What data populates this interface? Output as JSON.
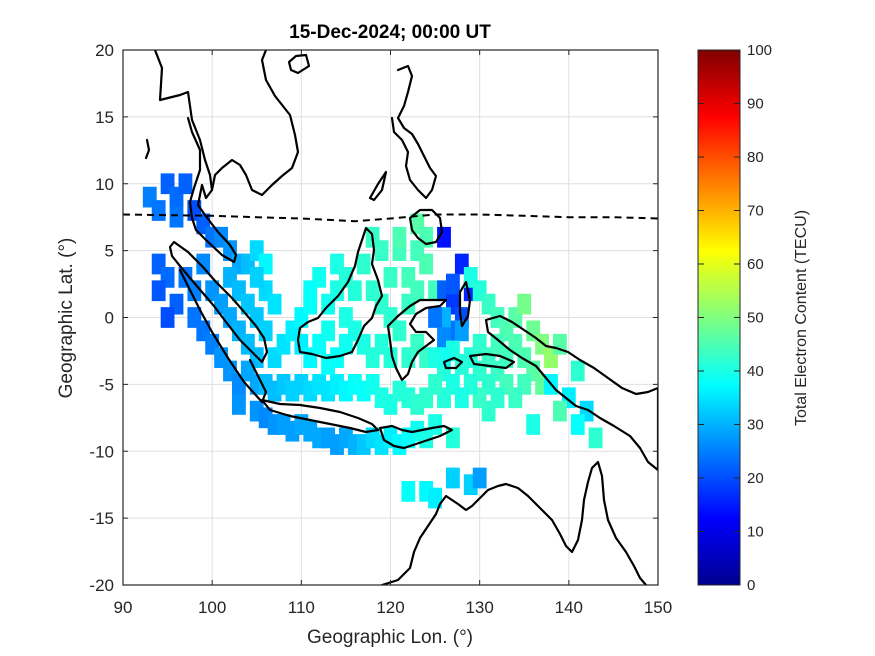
{
  "chart_data": {
    "type": "heatmap",
    "title": "15-Dec-2024; 00:00 UT",
    "xlabel": "Geographic Lon. (°)",
    "ylabel": "Geographic Lat. (°)",
    "xlim": [
      90,
      150
    ],
    "ylim": [
      -20,
      20
    ],
    "xticks": [
      "90",
      "100",
      "110",
      "120",
      "130",
      "140",
      "150"
    ],
    "yticks": [
      "20",
      "15",
      "10",
      "5",
      "0",
      "-5",
      "-10",
      "-15",
      "-20"
    ],
    "grid": true,
    "colorbar": {
      "label": "Total Electron Content (TECU)",
      "range": [
        0,
        100
      ],
      "ticks": [
        "100",
        "90",
        "80",
        "70",
        "60",
        "50",
        "40",
        "30",
        "20",
        "10",
        "0"
      ],
      "colormap": "jet"
    },
    "magnetic_equator": [
      [
        90,
        7.7
      ],
      [
        100,
        7.6
      ],
      [
        105,
        7.5
      ],
      [
        110,
        7.4
      ],
      [
        116,
        7.2
      ],
      [
        120,
        7.4
      ],
      [
        125,
        7.7
      ],
      [
        130,
        7.7
      ],
      [
        135,
        7.6
      ],
      [
        140,
        7.5
      ],
      [
        145,
        7.5
      ],
      [
        150,
        7.4
      ]
    ],
    "tec_cells": [
      [
        93,
        9,
        25
      ],
      [
        94,
        8,
        24
      ],
      [
        95,
        10,
        22
      ],
      [
        96,
        9,
        23
      ],
      [
        96,
        7.5,
        24
      ],
      [
        97,
        10,
        22
      ],
      [
        94,
        4,
        22
      ],
      [
        95,
        3,
        23
      ],
      [
        96,
        1,
        22
      ],
      [
        94,
        2,
        21
      ],
      [
        95,
        0,
        20
      ],
      [
        98,
        8,
        20
      ],
      [
        99,
        7,
        22
      ],
      [
        100,
        6,
        24
      ],
      [
        101,
        6,
        26
      ],
      [
        102,
        5,
        27
      ],
      [
        103,
        4,
        29
      ],
      [
        104,
        4,
        31
      ],
      [
        105,
        5,
        34
      ],
      [
        106,
        4,
        37
      ],
      [
        97,
        3,
        24
      ],
      [
        98,
        2,
        25
      ],
      [
        98,
        0,
        24
      ],
      [
        99,
        -1,
        24
      ],
      [
        100,
        -2,
        25
      ],
      [
        101,
        -3,
        27
      ],
      [
        102,
        -4,
        27
      ],
      [
        103,
        -5,
        26
      ],
      [
        103,
        -6.5,
        27
      ],
      [
        99,
        4,
        26
      ],
      [
        100,
        2,
        27
      ],
      [
        101,
        1,
        28
      ],
      [
        102,
        0,
        29
      ],
      [
        103,
        -1,
        30
      ],
      [
        104,
        -2,
        31
      ],
      [
        105,
        -3,
        31
      ],
      [
        104,
        -4,
        29
      ],
      [
        105,
        -5,
        29
      ],
      [
        102,
        3,
        30
      ],
      [
        103,
        2,
        31
      ],
      [
        104,
        1,
        32
      ],
      [
        105,
        0,
        32
      ],
      [
        106,
        -1,
        33
      ],
      [
        106,
        2,
        34
      ],
      [
        107,
        1,
        35
      ],
      [
        105,
        3,
        33
      ],
      [
        105,
        -7,
        27
      ],
      [
        106,
        -7.5,
        26
      ],
      [
        107,
        -8,
        27
      ],
      [
        108,
        -8,
        28
      ],
      [
        109,
        -8.5,
        28
      ],
      [
        110,
        -8,
        29
      ],
      [
        111,
        -8.5,
        29
      ],
      [
        112,
        -9,
        29
      ],
      [
        113,
        -9,
        28
      ],
      [
        114,
        -9.5,
        28
      ],
      [
        115,
        -9,
        29
      ],
      [
        116,
        -9.5,
        30
      ],
      [
        117,
        -9.5,
        32
      ],
      [
        118,
        -9,
        34
      ],
      [
        119,
        -9.5,
        35
      ],
      [
        120,
        -9,
        36
      ],
      [
        121,
        -9.5,
        37
      ],
      [
        122,
        -9,
        38
      ],
      [
        123,
        -8.5,
        39
      ],
      [
        124,
        -9,
        40
      ],
      [
        125,
        -8,
        40
      ],
      [
        127,
        -9,
        41
      ],
      [
        106,
        -5,
        31
      ],
      [
        107,
        -5.5,
        31
      ],
      [
        108,
        -5,
        32
      ],
      [
        109,
        -5.5,
        33
      ],
      [
        110,
        -5,
        33
      ],
      [
        111,
        -5.5,
        34
      ],
      [
        112,
        -5,
        35
      ],
      [
        113,
        -5.5,
        35
      ],
      [
        114,
        -5,
        36
      ],
      [
        115,
        -5.5,
        37
      ],
      [
        116,
        -5,
        38
      ],
      [
        117,
        -5.5,
        38
      ],
      [
        118,
        -5,
        39
      ],
      [
        119,
        -6,
        40
      ],
      [
        120,
        -6.5,
        40
      ],
      [
        121,
        -5.5,
        41
      ],
      [
        122,
        -6,
        41
      ],
      [
        123,
        -6.5,
        42
      ],
      [
        124,
        -6,
        42
      ],
      [
        107,
        -3,
        34
      ],
      [
        108,
        -2,
        35
      ],
      [
        109,
        -1,
        36
      ],
      [
        110,
        0,
        37
      ],
      [
        111,
        1,
        38
      ],
      [
        110,
        -2,
        36
      ],
      [
        111,
        -3,
        37
      ],
      [
        112,
        -2,
        38
      ],
      [
        113,
        -1,
        39
      ],
      [
        113,
        1,
        39
      ],
      [
        112,
        3,
        39
      ],
      [
        111,
        2,
        38
      ],
      [
        114,
        2,
        40
      ],
      [
        114,
        4,
        40
      ],
      [
        115,
        3,
        41
      ],
      [
        116,
        2,
        41
      ],
      [
        115,
        0,
        40
      ],
      [
        116,
        -1,
        40
      ],
      [
        117,
        -2,
        40
      ],
      [
        118,
        -3,
        41
      ],
      [
        114,
        -3,
        38
      ],
      [
        115,
        -2,
        39
      ],
      [
        113,
        -3.5,
        38
      ],
      [
        117,
        4,
        42
      ],
      [
        118,
        6,
        43
      ],
      [
        119,
        5,
        43
      ],
      [
        118,
        2,
        42
      ],
      [
        119,
        1,
        42
      ],
      [
        120,
        3,
        43
      ],
      [
        121,
        5,
        44
      ],
      [
        120,
        0,
        42
      ],
      [
        119,
        -2,
        41
      ],
      [
        120,
        -3,
        41
      ],
      [
        121,
        -1,
        42
      ],
      [
        122,
        1,
        43
      ],
      [
        122,
        3,
        44
      ],
      [
        123,
        5,
        44
      ],
      [
        124,
        4,
        45
      ],
      [
        123,
        2,
        44
      ],
      [
        121,
        6,
        45
      ],
      [
        123,
        7,
        46
      ],
      [
        124,
        6,
        45
      ],
      [
        125,
        2,
        44
      ],
      [
        122,
        -3,
        42
      ],
      [
        123,
        -2,
        43
      ],
      [
        124,
        -3,
        43
      ],
      [
        126,
        6,
        14
      ],
      [
        128,
        4,
        16
      ],
      [
        126,
        2,
        22
      ],
      [
        127,
        1,
        18
      ],
      [
        128,
        0,
        20
      ],
      [
        127,
        -1,
        24
      ],
      [
        126,
        0,
        30
      ],
      [
        129,
        2,
        16
      ],
      [
        125,
        0,
        24
      ],
      [
        126,
        -1.5,
        26
      ],
      [
        127,
        2.5,
        21
      ],
      [
        128,
        -1,
        28
      ],
      [
        129,
        3,
        40
      ],
      [
        130,
        2,
        41
      ],
      [
        131,
        1,
        43
      ],
      [
        132,
        0,
        44
      ],
      [
        133,
        -1,
        45
      ],
      [
        134,
        0,
        46
      ],
      [
        135,
        1,
        49
      ],
      [
        136,
        -1,
        48
      ],
      [
        137,
        -2,
        50
      ],
      [
        138,
        -3,
        52
      ],
      [
        139,
        -2,
        46
      ],
      [
        134,
        -2,
        45
      ],
      [
        133,
        -3,
        44
      ],
      [
        132,
        -4,
        43
      ],
      [
        131,
        -5,
        42
      ],
      [
        130,
        -4,
        42
      ],
      [
        129,
        -3,
        41
      ],
      [
        130,
        -2,
        42
      ],
      [
        131,
        -3,
        43
      ],
      [
        132,
        -2,
        44
      ],
      [
        135,
        -3,
        45
      ],
      [
        136,
        -4,
        46
      ],
      [
        137,
        -5,
        47
      ],
      [
        135,
        -5,
        44
      ],
      [
        134,
        -6,
        43
      ],
      [
        133,
        -5,
        44
      ],
      [
        132,
        -6,
        42
      ],
      [
        131,
        -7,
        42
      ],
      [
        130,
        -6,
        43
      ],
      [
        129,
        -5,
        41
      ],
      [
        126,
        -4,
        41
      ],
      [
        127,
        -5,
        40
      ],
      [
        128,
        -6,
        40
      ],
      [
        126,
        -6,
        41
      ],
      [
        125,
        -5,
        42
      ],
      [
        127,
        -2.5,
        40
      ],
      [
        126,
        -3,
        39
      ],
      [
        128,
        -3.5,
        41
      ],
      [
        125,
        -3,
        40
      ],
      [
        138,
        -5,
        37
      ],
      [
        140,
        -6,
        36
      ],
      [
        142,
        -7,
        34
      ],
      [
        139,
        -7,
        45
      ],
      [
        141,
        -4,
        42
      ],
      [
        143,
        -9,
        42
      ],
      [
        136,
        -8,
        40
      ],
      [
        141,
        -8,
        38
      ],
      [
        122,
        -13,
        38
      ],
      [
        124,
        -13,
        37
      ],
      [
        125,
        -13.5,
        36
      ],
      [
        127,
        -12,
        33
      ],
      [
        129,
        -12.5,
        33
      ],
      [
        130,
        -12,
        28
      ]
    ]
  }
}
